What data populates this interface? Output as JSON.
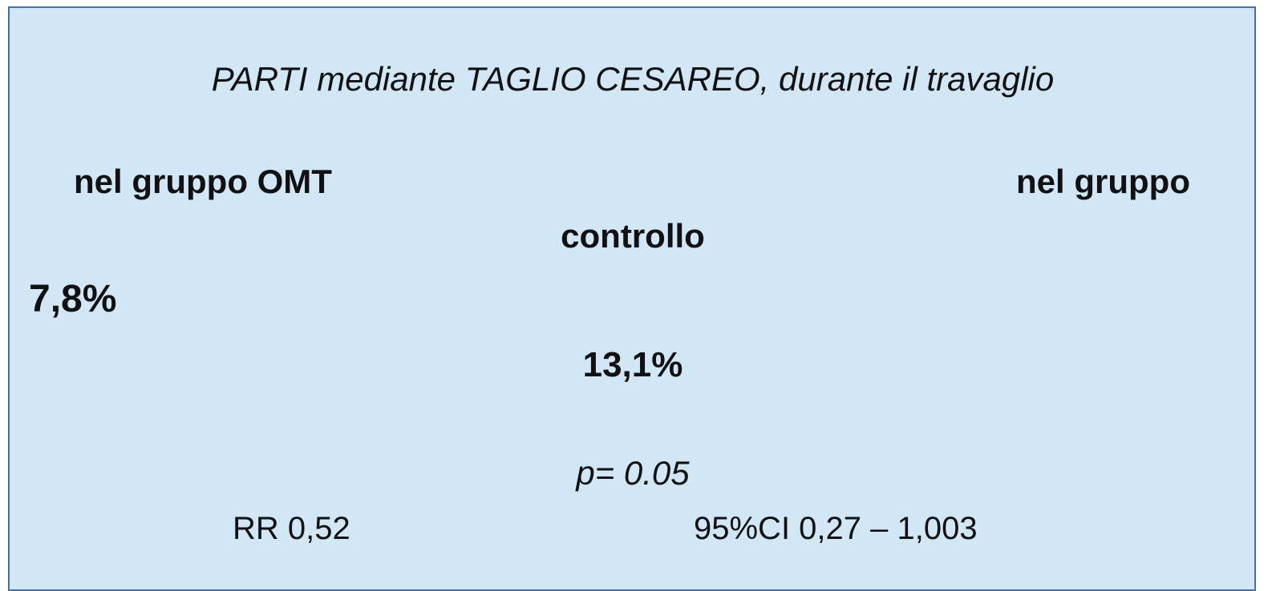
{
  "slide": {
    "title": "PARTI mediante TAGLIO CESAREO, durante il travaglio",
    "group_omt_label": "nel gruppo OMT",
    "group_control_label_line1": "nel gruppo",
    "group_control_label_line2": "controllo",
    "omt_rate": "7,8%",
    "control_rate": "13,1%",
    "p_value": "p= 0.05",
    "rr": "RR 0,52",
    "ci": "95%CI 0,27 – 1,003"
  }
}
